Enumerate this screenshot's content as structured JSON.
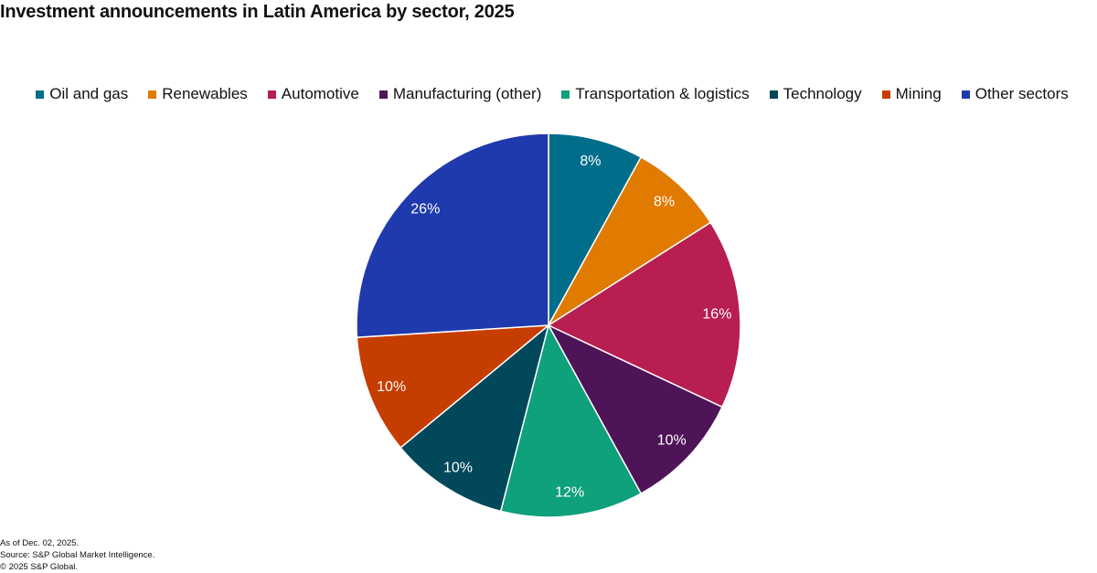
{
  "chart_data": {
    "type": "pie",
    "title": "Investment announcements in Latin America by sector, 2025",
    "categories": [
      "Oil and gas",
      "Renewables",
      "Automotive",
      "Manufacturing (other)",
      "Transportation & logistics",
      "Technology",
      "Mining",
      "Other sectors"
    ],
    "values": [
      8,
      8,
      16,
      10,
      12,
      10,
      10,
      26
    ],
    "value_labels": [
      "8%",
      "8%",
      "16%",
      "10%",
      "12%",
      "10%",
      "10%",
      "26%"
    ],
    "colors": [
      "#006d8a",
      "#e07b00",
      "#b81e50",
      "#4e1457",
      "#0fa07c",
      "#00485a",
      "#c63d00",
      "#1f3aad"
    ],
    "legend": "top",
    "notes": [
      "As of Dec. 02, 2025.",
      "Source: S&P Global Market Intelligence.",
      "© 2025 S&P Global."
    ]
  }
}
